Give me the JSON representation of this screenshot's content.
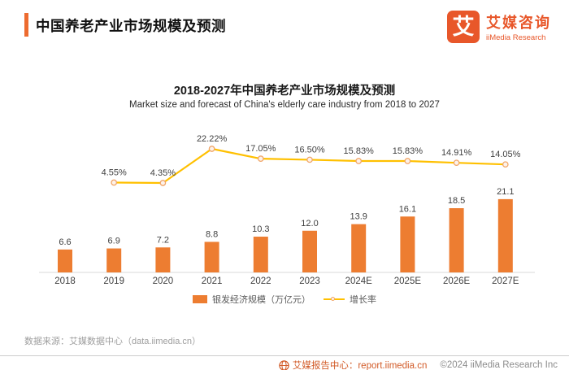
{
  "header": {
    "title": "中国养老产业市场规模及预测"
  },
  "logo": {
    "mark": "艾",
    "name_cn": "艾媒咨询",
    "name_en": "iiMedia Research"
  },
  "chart": {
    "title": "2018-2027年中国养老产业市场规模及预测",
    "subtitle": "Market size and forecast of China's elderly care industry from 2018 to 2027",
    "legend": [
      {
        "label": "银发经济规模（万亿元）",
        "type": "bar"
      },
      {
        "label": "增长率",
        "type": "line"
      }
    ]
  },
  "chart_data": {
    "type": "bar+line",
    "title": "2018-2027年中国养老产业市场规模及预测",
    "categories": [
      "2018",
      "2019",
      "2020",
      "2021",
      "2022",
      "2023",
      "2024E",
      "2025E",
      "2026E",
      "2027E"
    ],
    "series": [
      {
        "name": "银发经济规模（万亿元）",
        "type": "bar",
        "color": "#ED7D31",
        "values": [
          6.6,
          6.9,
          7.2,
          8.8,
          10.3,
          12.0,
          13.9,
          16.1,
          18.5,
          21.1
        ],
        "labels": [
          "6.6",
          "6.9",
          "7.2",
          "8.8",
          "10.3",
          "12.0",
          "13.9",
          "16.1",
          "18.5",
          "21.1"
        ]
      },
      {
        "name": "增长率",
        "type": "line",
        "color": "#FFC000",
        "marker_stroke": "#F0A568",
        "marker_fill": "#FDF2EA",
        "values": [
          null,
          4.55,
          4.35,
          22.22,
          17.05,
          16.5,
          15.83,
          15.83,
          14.91,
          14.05
        ],
        "labels": [
          "",
          "4.55%",
          "4.35%",
          "22.22%",
          "17.05%",
          "16.50%",
          "15.83%",
          "15.83%",
          "14.91%",
          "14.05%"
        ]
      }
    ],
    "bar_axis": {
      "min": 0,
      "unit": "万亿元"
    },
    "line_axis": {
      "unit": "%"
    },
    "grid": false,
    "legend_position": "bottom"
  },
  "source": {
    "text": "数据来源：艾媒数据中心（data.iimedia.cn）"
  },
  "footer": {
    "report_center": "艾媒报告中心：report.iimedia.cn",
    "copyright": "©2024  iiMedia Research Inc"
  }
}
